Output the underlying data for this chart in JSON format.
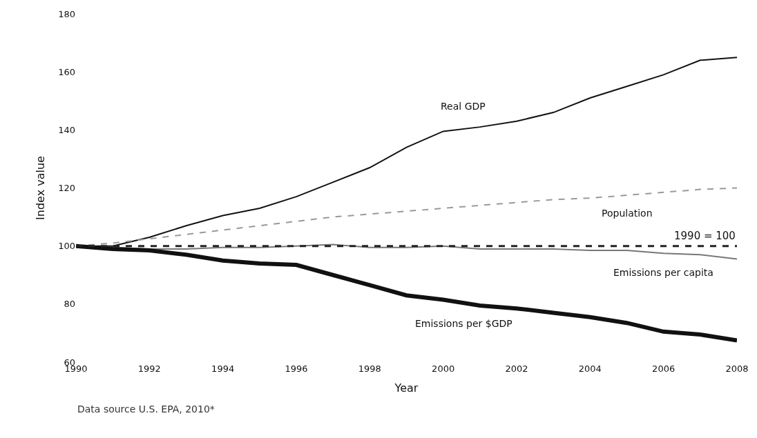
{
  "chart_data": {
    "type": "line",
    "xlabel": "Year",
    "ylabel": "Index value",
    "x": [
      1990,
      1991,
      1992,
      1993,
      1994,
      1995,
      1996,
      1997,
      1998,
      1999,
      2000,
      2001,
      2002,
      2003,
      2004,
      2005,
      2006,
      2007,
      2008
    ],
    "series": [
      {
        "name": "Real GDP",
        "color": "#111111",
        "values": [
          100,
          100,
          103,
          107,
          110.5,
          113,
          117,
          122,
          127,
          134,
          139.5,
          141,
          143,
          146,
          151,
          155,
          159,
          164,
          165
        ]
      },
      {
        "name": "Population",
        "color": "#999999",
        "line_style": "dashed",
        "values": [
          100,
          101,
          102.5,
          104,
          105.5,
          107,
          108.5,
          110,
          111,
          112,
          113,
          114,
          115,
          116,
          116.5,
          117.5,
          118.5,
          119.5,
          120
        ]
      },
      {
        "name": "Emissions per capita",
        "color": "#777777",
        "values": [
          100,
          99.5,
          99,
          99,
          99.5,
          99.5,
          100,
          100.5,
          99.5,
          99.5,
          100,
          99,
          99,
          99,
          98.5,
          98.5,
          97.5,
          97,
          95.5
        ]
      },
      {
        "name": "Emissions per $GDP",
        "color": "#111111",
        "values": [
          100,
          99,
          98.5,
          97,
          95,
          94,
          93.5,
          90,
          86.5,
          83,
          81.5,
          79.5,
          78.5,
          77,
          75.5,
          73.5,
          70.5,
          69.5,
          67.5
        ]
      }
    ],
    "annotations": [
      "Data source U.S. EPA, 2010*"
    ],
    "ref_lines": [
      {
        "axis": "y",
        "value": 100,
        "label": "1990 = 100",
        "color": "#222222",
        "line_style": "dashed"
      }
    ],
    "xlim": [
      1990,
      2008
    ],
    "xticks": [
      1990,
      1992,
      1994,
      1996,
      1998,
      2000,
      2002,
      2004,
      2006,
      2008
    ],
    "ylim": [
      60,
      180
    ],
    "yticks": [
      60,
      80,
      100,
      120,
      140,
      160,
      180
    ],
    "legend": false
  }
}
